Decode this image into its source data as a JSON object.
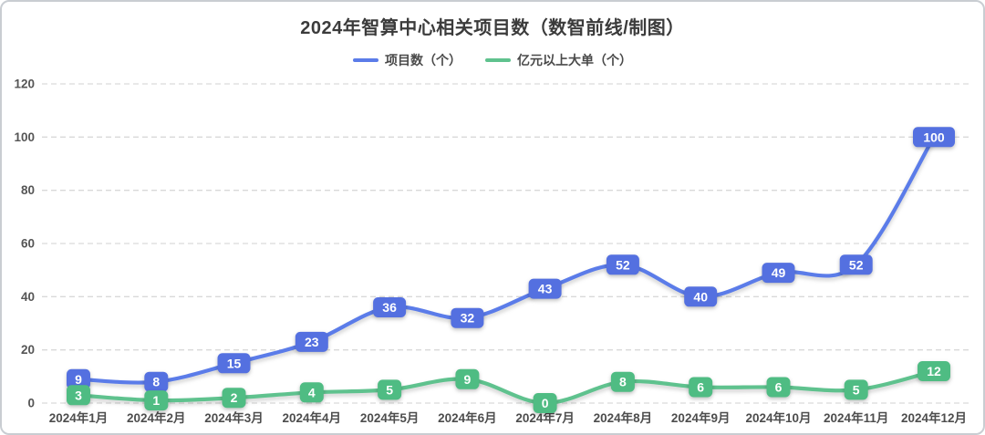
{
  "chart_data": {
    "type": "line",
    "title": "2024年智算中心相关项目数（数智前线/制图）",
    "categories": [
      "2024年1月",
      "2024年2月",
      "2024年3月",
      "2024年4月",
      "2024年5月",
      "2024年6月",
      "2024年7月",
      "2024年8月",
      "2024年9月",
      "2024年10月",
      "2024年11月",
      "2024年12月"
    ],
    "series": [
      {
        "name": "项目数（个）",
        "color": "#5b7ce9",
        "label_color": "#5470e0",
        "values": [
          9,
          8,
          15,
          23,
          36,
          32,
          43,
          52,
          40,
          49,
          52,
          100
        ]
      },
      {
        "name": "亿元以上大单（个）",
        "color": "#5fc28e",
        "label_color": "#4fbc83",
        "values": [
          3,
          1,
          2,
          4,
          5,
          9,
          0,
          8,
          6,
          6,
          5,
          12
        ]
      }
    ],
    "xlabel": "",
    "ylabel": "",
    "ylim": [
      0,
      120
    ],
    "yticks": [
      0,
      20,
      40,
      60,
      80,
      100,
      120
    ],
    "grid": "dashed-horizontal",
    "legend_position": "top",
    "line_style": "smooth",
    "gridline_color": "#d9d9d9",
    "axis_text_color": "#4d4d4d"
  }
}
